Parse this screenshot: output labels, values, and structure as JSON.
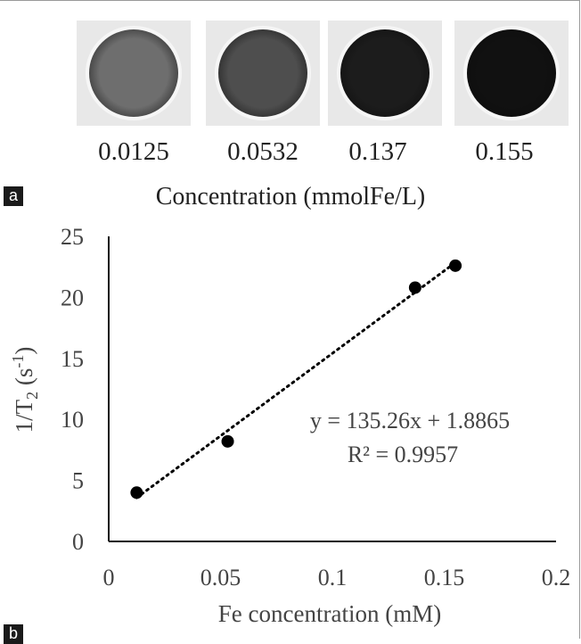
{
  "panel_a": {
    "tag": "a",
    "concentrations": [
      {
        "label": "0.0125",
        "shade": "#6e6e6e"
      },
      {
        "label": "0.0532",
        "shade": "#4e4e4e"
      },
      {
        "label": "0.137",
        "shade": "#1c1c1c"
      },
      {
        "label": "0.155",
        "shade": "#111111"
      }
    ],
    "title": "Concentration (mmolFe/L)"
  },
  "panel_b": {
    "tag": "b"
  },
  "chart_data": {
    "type": "scatter",
    "xlabel": "Fe concentration (mM)",
    "ylabel_main": "1/T",
    "ylabel_sub": "2",
    "ylabel_unit": " (s",
    "ylabel_sup": "-1",
    "ylabel_close": ")",
    "xlim": [
      0,
      0.2
    ],
    "ylim": [
      0,
      25
    ],
    "xticks": [
      "0",
      "0.05",
      "0.1",
      "0.15",
      "0.2"
    ],
    "yticks": [
      "0",
      "5",
      "10",
      "15",
      "20",
      "25"
    ],
    "points": [
      {
        "x": 0.0125,
        "y": 4.0
      },
      {
        "x": 0.0532,
        "y": 8.2
      },
      {
        "x": 0.137,
        "y": 20.8
      },
      {
        "x": 0.155,
        "y": 22.6
      }
    ],
    "trendline": {
      "slope": 135.26,
      "intercept": 1.8865,
      "x_from": 0.0125,
      "x_to": 0.155
    },
    "equation": "y = 135.26x + 1.8865",
    "r2": "R² = 0.9957",
    "grid": false,
    "marker_color": "#000000"
  }
}
